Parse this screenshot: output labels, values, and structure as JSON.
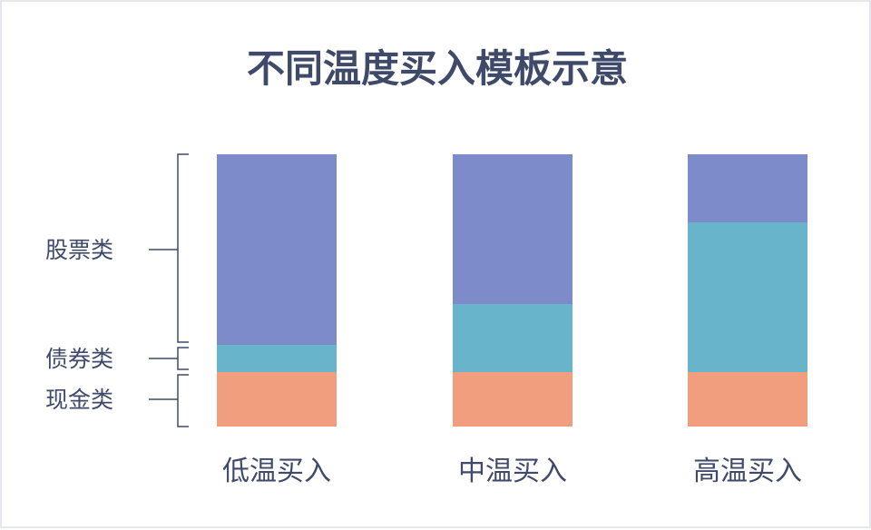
{
  "chart_data": {
    "type": "bar",
    "stacked": true,
    "normalized": true,
    "title": "不同温度买入模板示意",
    "categories": [
      "低温买入",
      "中温买入",
      "高温买入"
    ],
    "series": [
      {
        "name": "现金类",
        "color": "#f09e7d",
        "values": [
          0.2,
          0.2,
          0.2
        ]
      },
      {
        "name": "债券类",
        "color": "#68b4cb",
        "values": [
          0.1,
          0.25,
          0.55
        ]
      },
      {
        "name": "股票类",
        "color": "#7d8bcb",
        "values": [
          0.7,
          0.55,
          0.25
        ]
      }
    ],
    "legend_position": "left",
    "grid": false,
    "ylim": [
      0,
      1
    ]
  }
}
